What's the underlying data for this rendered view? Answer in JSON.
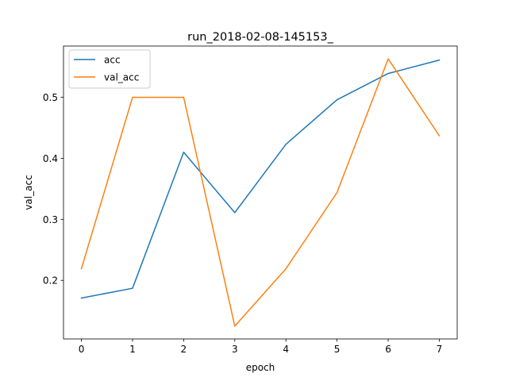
{
  "chart_data": {
    "type": "line",
    "title": "run_2018-02-08-145153_",
    "xlabel": "epoch",
    "ylabel": "val_acc",
    "x": [
      0,
      1,
      2,
      3,
      4,
      5,
      6,
      7
    ],
    "x_ticks": [
      "0",
      "1",
      "2",
      "3",
      "4",
      "5",
      "6",
      "7"
    ],
    "y_ticks": [
      "0.2",
      "0.3",
      "0.4",
      "0.5"
    ],
    "xlim": [
      -0.35,
      7.35
    ],
    "ylim": [
      0.104,
      0.584
    ],
    "grid": false,
    "legend_position": "top-left",
    "series": [
      {
        "name": "acc",
        "color": "#1f77b4",
        "values": [
          0.171,
          0.187,
          0.41,
          0.311,
          0.423,
          0.496,
          0.539,
          0.561
        ]
      },
      {
        "name": "val_acc",
        "color": "#ff7f0e",
        "values": [
          0.219,
          0.5,
          0.5,
          0.125,
          0.219,
          0.344,
          0.563,
          0.437
        ]
      }
    ]
  }
}
